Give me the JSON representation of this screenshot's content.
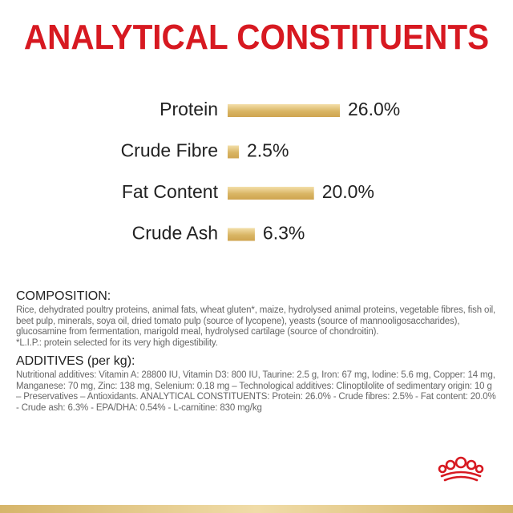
{
  "title": "ANALYTICAL CONSTITUENTS",
  "colors": {
    "title": "#d71921",
    "bar": "#d9b564",
    "bar_light": "#f3dfa9",
    "text": "#222222"
  },
  "chart_data": {
    "type": "bar",
    "orientation": "horizontal",
    "categories": [
      "Protein",
      "Crude Fibre",
      "Fat Content",
      "Crude Ash"
    ],
    "values": [
      26.0,
      2.5,
      20.0,
      6.3
    ],
    "value_labels": [
      "26.0%",
      "2.5%",
      "20.0%",
      "6.3%"
    ],
    "unit": "%",
    "title": "ANALYTICAL CONSTITUENTS",
    "xlabel": "",
    "ylabel": ""
  },
  "composition": {
    "heading": "COMPOSITION:",
    "text": "Rice, dehydrated poultry proteins, animal fats, wheat gluten*, maize, hydrolysed animal proteins, vegetable fibres, fish oil, beet pulp, minerals, soya oil, dried tomato pulp (source of lycopene), yeasts (source of mannooligosaccharides), glucosamine from fermentation, marigold meal, hydrolysed cartilage (source of chondroitin).",
    "footnote": "*L.I.P.: protein selected for its very high digestibility."
  },
  "additives": {
    "heading": "ADDITIVES (per kg):",
    "text": "Nutritional additives: Vitamin A: 28800 IU, Vitamin D3: 800 IU, Taurine: 2.5 g, Iron: 67 mg, Iodine: 5.6 mg, Copper: 14 mg, Manganese: 70 mg, Zinc: 138 mg, Selenium: 0.18 mg – Technological additives: Clinoptilolite of sedimentary origin: 10 g – Preservatives – Antioxidants. ANALYTICAL CONSTITUENTS: Protein: 26.0% - Crude fibres: 2.5% - Fat content: 20.0% - Crude ash: 6.3% - EPA/DHA: 0.54% - L-carnitine: 830 mg/kg"
  },
  "logo": {
    "icon": "crown-icon"
  }
}
